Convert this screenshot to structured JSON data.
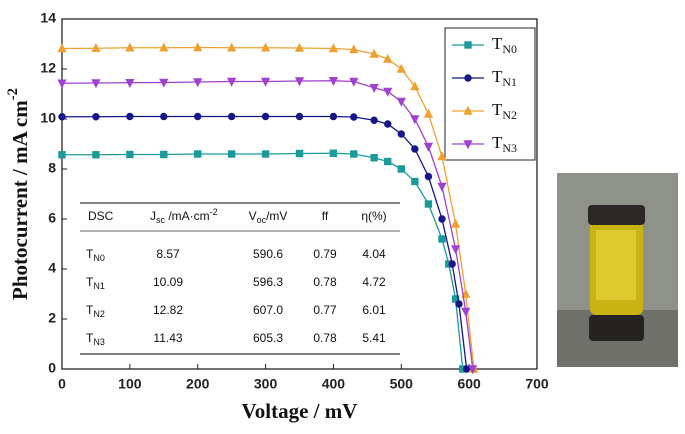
{
  "chart_data": {
    "type": "line",
    "xlabel": "Voltage / mV",
    "ylabel": "Photocurrent / mA cm",
    "ylabel_sup": "-2",
    "xlim": [
      0,
      700
    ],
    "xticks": [
      0,
      100,
      200,
      300,
      400,
      500,
      600,
      700
    ],
    "ylim": [
      0,
      14
    ],
    "yticks": [
      0,
      2,
      4,
      6,
      8,
      10,
      12,
      14
    ],
    "legend": "upper right",
    "series": [
      {
        "name": "T",
        "name_sub": "N0",
        "color": "#1b9a9a",
        "marker": "square",
        "x": [
          0,
          50,
          100,
          150,
          200,
          250,
          300,
          350,
          400,
          430,
          460,
          480,
          500,
          520,
          540,
          560,
          570,
          580,
          590.6
        ],
        "values": [
          8.57,
          8.57,
          8.58,
          8.58,
          8.6,
          8.6,
          8.6,
          8.62,
          8.63,
          8.6,
          8.45,
          8.3,
          8.0,
          7.5,
          6.6,
          5.2,
          4.2,
          2.8,
          0
        ]
      },
      {
        "name": "T",
        "name_sub": "N1",
        "color": "#16168a",
        "marker": "circle",
        "x": [
          0,
          50,
          100,
          150,
          200,
          250,
          300,
          350,
          400,
          430,
          460,
          480,
          500,
          520,
          540,
          560,
          575,
          585,
          596.3
        ],
        "values": [
          10.09,
          10.09,
          10.1,
          10.1,
          10.1,
          10.1,
          10.1,
          10.1,
          10.1,
          10.08,
          9.95,
          9.8,
          9.4,
          8.8,
          7.7,
          6.0,
          4.2,
          2.6,
          0
        ]
      },
      {
        "name": "T",
        "name_sub": "N2",
        "color": "#f0a030",
        "marker": "triangle-up",
        "x": [
          0,
          50,
          100,
          150,
          200,
          250,
          300,
          350,
          400,
          430,
          460,
          480,
          500,
          520,
          540,
          560,
          580,
          595,
          607.0
        ],
        "values": [
          12.82,
          12.83,
          12.85,
          12.85,
          12.86,
          12.85,
          12.85,
          12.84,
          12.82,
          12.78,
          12.6,
          12.4,
          12.0,
          11.3,
          10.2,
          8.5,
          5.8,
          3.0,
          0
        ]
      },
      {
        "name": "T",
        "name_sub": "N3",
        "color": "#a040d0",
        "marker": "triangle-down",
        "x": [
          0,
          50,
          100,
          150,
          200,
          250,
          300,
          350,
          400,
          430,
          460,
          480,
          500,
          520,
          540,
          560,
          580,
          595,
          605.3
        ],
        "values": [
          11.43,
          11.44,
          11.45,
          11.46,
          11.48,
          11.5,
          11.5,
          11.52,
          11.53,
          11.5,
          11.25,
          11.1,
          10.7,
          10.0,
          8.9,
          7.3,
          4.8,
          2.3,
          0
        ]
      }
    ],
    "inset_table": {
      "columns": [
        {
          "text": "DSC"
        },
        {
          "text": "J",
          "sub": "sc",
          "after": " /mA·cm",
          "sup": "-2"
        },
        {
          "text": "V",
          "sub": "oc",
          "after": "/mV"
        },
        {
          "text": "ff"
        },
        {
          "text": "η(%)"
        }
      ],
      "rows": [
        [
          {
            "text": "T",
            "sub": "N0"
          },
          "8.57",
          "590.6",
          "0.79",
          "4.04"
        ],
        [
          {
            "text": "T",
            "sub": "N1"
          },
          "10.09",
          "596.3",
          "0.78",
          "4.72"
        ],
        [
          {
            "text": "T",
            "sub": "N2"
          },
          "12.82",
          "607.0",
          "0.77",
          "6.01"
        ],
        [
          {
            "text": "T",
            "sub": "N3"
          },
          "11.43",
          "605.3",
          "0.78",
          "5.41"
        ]
      ]
    }
  }
}
